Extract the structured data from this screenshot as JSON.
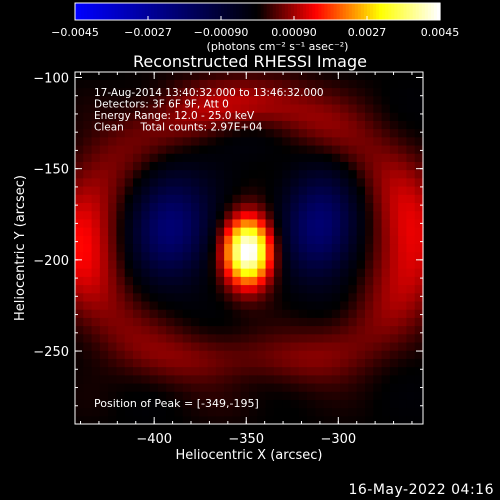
{
  "chart_data": {
    "type": "heatmap",
    "title": "Reconstructed RHESSI Image",
    "xlabel": "Heliocentric X (arcsec)",
    "ylabel": "Heliocentric Y (arcsec)",
    "x_range": [
      -443,
      -254
    ],
    "y_range": [
      -290,
      -97
    ],
    "x_ticks": [
      {
        "value": -400,
        "label": "−400"
      },
      {
        "value": -350,
        "label": "−350"
      },
      {
        "value": -300,
        "label": "−300"
      }
    ],
    "y_ticks": [
      {
        "value": -100,
        "label": "−100"
      },
      {
        "value": -150,
        "label": "−150"
      },
      {
        "value": -200,
        "label": "−200"
      },
      {
        "value": -250,
        "label": "−250"
      }
    ],
    "colorbar": {
      "range": [
        -0.0045,
        0.0045
      ],
      "ticks": [
        {
          "value": -0.0045,
          "label": "−0.0045"
        },
        {
          "value": -0.0027,
          "label": "−0.0027"
        },
        {
          "value": -0.0009,
          "label": "−0.00090"
        },
        {
          "value": 0.0009,
          "label": "0.00090"
        },
        {
          "value": 0.0027,
          "label": "0.0027"
        },
        {
          "value": 0.0045,
          "label": "0.0045"
        }
      ],
      "unit_label": "(photons cm⁻² s⁻¹ asec⁻²)",
      "colormap": [
        "#0000ff",
        "#000000",
        "#ff0000",
        "#ffff00",
        "#ffffff"
      ]
    },
    "annotations": [
      "17-Aug-2014 13:40:32.000 to 13:46:32.000",
      "Detectors: 3F 6F 9F, Att 0",
      "Energy Range: 12.0 - 25.0 keV",
      "Clean     Total counts: 2.97E+04"
    ],
    "peak_label": "Position of Peak = [-349,-195]",
    "peak": {
      "x": -349,
      "y": -195,
      "value": 0.0045
    },
    "features": [
      {
        "kind": "gaussian",
        "x": -349,
        "y": -195,
        "amp": 0.0048,
        "sx": 9,
        "sy": 13
      },
      {
        "kind": "gaussian",
        "x": -391,
        "y": -181,
        "amp": -0.002,
        "sx": 15,
        "sy": 20
      },
      {
        "kind": "gaussian",
        "x": -310,
        "y": -181,
        "amp": -0.002,
        "sx": 14,
        "sy": 20
      },
      {
        "kind": "gaussian",
        "x": -350,
        "y": -265,
        "amp": -0.0011,
        "sx": 26,
        "sy": 10
      },
      {
        "kind": "gaussian",
        "x": -350,
        "y": -128,
        "amp": -0.0008,
        "sx": 22,
        "sy": 10
      },
      {
        "kind": "ring",
        "x": -350,
        "y": -190,
        "rx": 90,
        "ry": 72,
        "amp": 0.0014,
        "width": 12
      }
    ]
  },
  "footer": {
    "date": "16-May-2022 04:16"
  }
}
